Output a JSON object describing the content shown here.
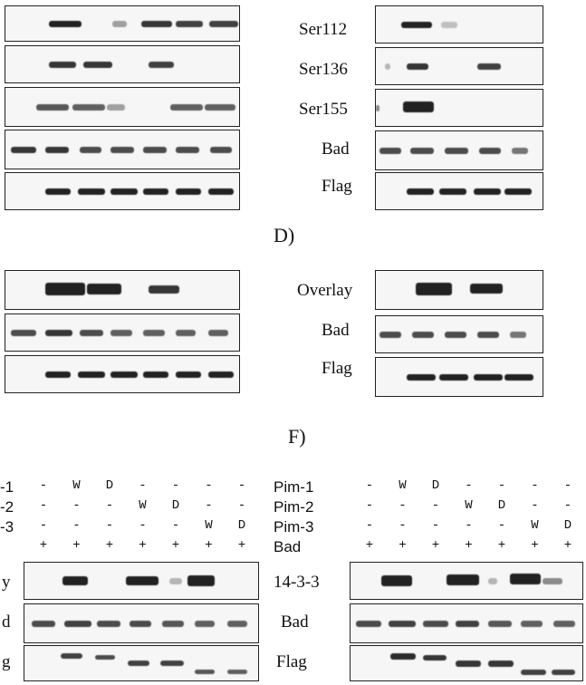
{
  "panel_labels": {
    "d": "D)",
    "f": "F)"
  },
  "right_top": {
    "labels": [
      "Ser112",
      "Ser136",
      "Ser155",
      "Bad",
      "Flag"
    ]
  },
  "right_mid": {
    "labels": [
      "Overlay",
      "Bad",
      "Flag"
    ]
  },
  "bottom_left": {
    "row_labels": [
      "-1",
      "-2",
      "-3"
    ],
    "blot_labels": [
      "y",
      "d",
      "g"
    ],
    "rows": [
      [
        "-",
        "W",
        "D",
        "-",
        "-",
        "-",
        "-"
      ],
      [
        "-",
        "-",
        "-",
        "W",
        "D",
        "-",
        "-"
      ],
      [
        "-",
        "-",
        "-",
        "-",
        "-",
        "W",
        "D"
      ],
      [
        "+",
        "+",
        "+",
        "+",
        "+",
        "+",
        "+"
      ]
    ]
  },
  "bottom_right": {
    "row_labels": [
      "Pim-1",
      "Pim-2",
      "Pim-3",
      "Bad"
    ],
    "blot_labels": [
      "14-3-3",
      "Bad",
      "Flag"
    ],
    "rows": [
      [
        "-",
        "W",
        "D",
        "-",
        "-",
        "-",
        "-"
      ],
      [
        "-",
        "-",
        "-",
        "W",
        "D",
        "-",
        "-"
      ],
      [
        "-",
        "-",
        "-",
        "-",
        "-",
        "W",
        "D"
      ],
      [
        "+",
        "+",
        "+",
        "+",
        "+",
        "+",
        "+"
      ]
    ]
  }
}
